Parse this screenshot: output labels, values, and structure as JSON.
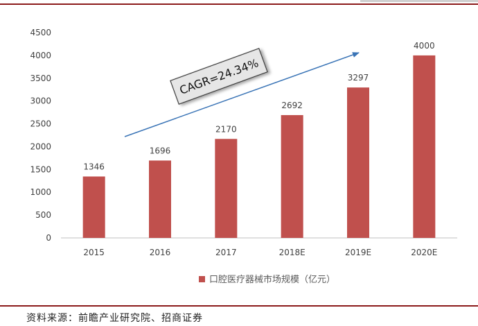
{
  "chart_data": {
    "type": "bar",
    "categories": [
      "2015",
      "2016",
      "2017",
      "2018E",
      "2019E",
      "2020E"
    ],
    "series": [
      {
        "name": "口腔医疗器械市场规模（亿元）",
        "values": [
          1346,
          1696,
          2170,
          2692,
          3297,
          4000
        ]
      }
    ],
    "ylim": [
      0,
      4500
    ],
    "yticks": [
      0,
      500,
      1000,
      1500,
      2000,
      2500,
      3000,
      3500,
      4000,
      4500
    ],
    "data_labels": [
      "1346",
      "1696",
      "2170",
      "2692",
      "3297",
      "4000"
    ],
    "annotation": "CAGR=24.34%",
    "legend_position": "bottom",
    "grid": false,
    "bar_color": "#c0504d"
  },
  "footer": {
    "source": "资料来源：前瞻产业研究院、招商证券"
  }
}
